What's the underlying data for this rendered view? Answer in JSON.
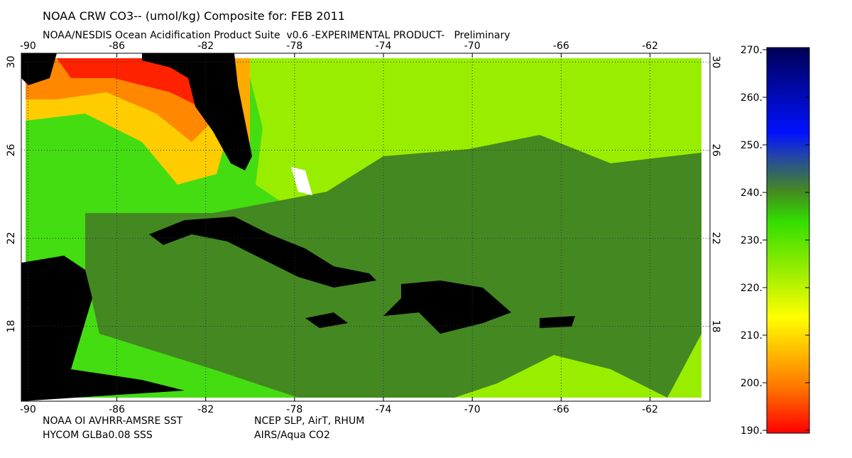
{
  "header": {
    "title": "NOAA CRW CO3-- (umol/kg) Composite for: FEB 2011",
    "subtitle": "NOAA/NESDIS Ocean Acidification Product Suite  v0.6 -EXPERIMENTAL PRODUCT-   Preliminary"
  },
  "map": {
    "lonlim": [
      -90.3,
      -59.3
    ],
    "latlim": [
      14.6,
      30.4
    ],
    "lonticks": [
      -90,
      -86,
      -82,
      -78,
      -74,
      -70,
      -66,
      -62
    ],
    "latticks": [
      30,
      26,
      22,
      18
    ],
    "grid": true
  },
  "colorbar": {
    "lim": [
      190,
      270
    ],
    "ticks": [
      {
        "value": 270,
        "label": "270."
      },
      {
        "value": 260,
        "label": "260."
      },
      {
        "value": 250,
        "label": "250."
      },
      {
        "value": 240,
        "label": "240."
      },
      {
        "value": 230,
        "label": "230."
      },
      {
        "value": 220,
        "label": "220."
      },
      {
        "value": 210,
        "label": "210."
      },
      {
        "value": 200,
        "label": "200."
      },
      {
        "value": 190,
        "label": "190."
      }
    ]
  },
  "footer": {
    "sources": [
      "NOAA OI AVHRR-AMSRE SST",
      "NCEP SLP, AirT, RHUM",
      "HYCOM GLBa0.08 SSS",
      "AIRS/Aqua CO2"
    ]
  }
}
